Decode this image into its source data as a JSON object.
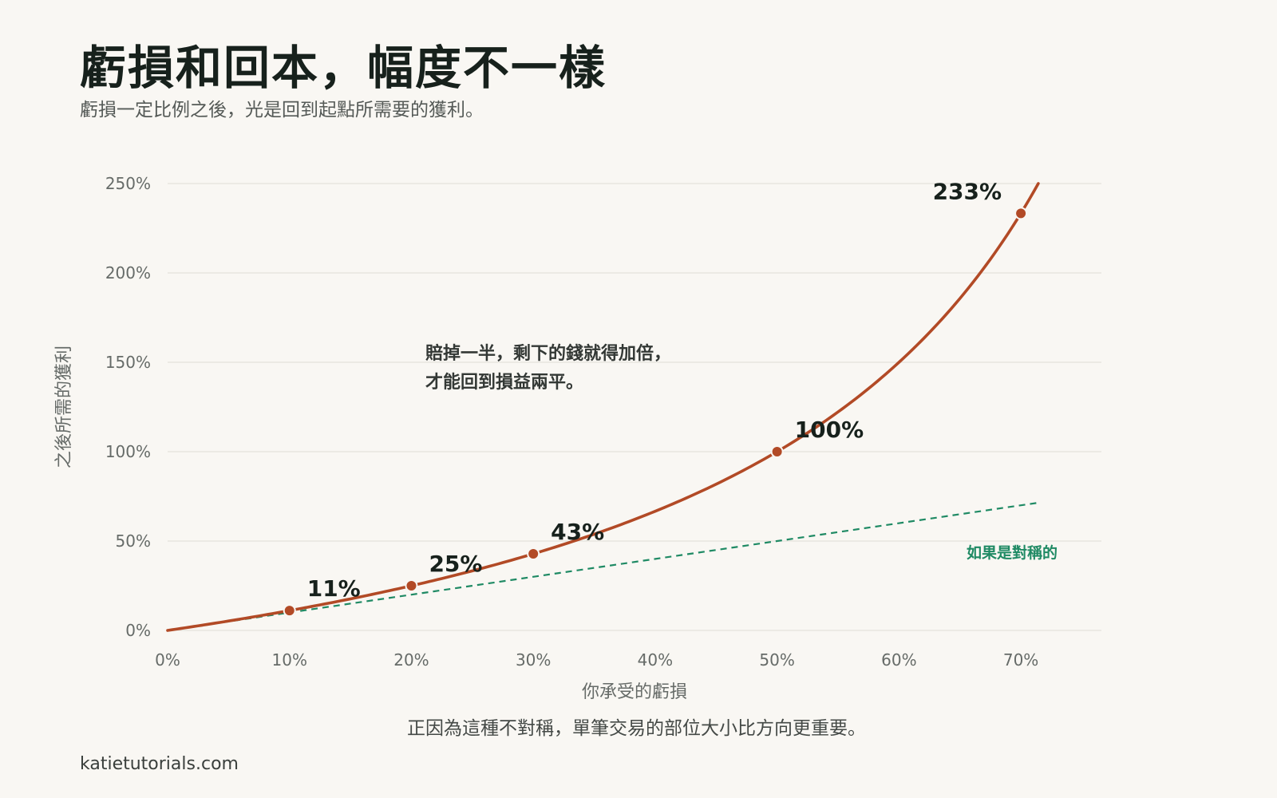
{
  "header": {
    "title": "虧損和回本，幅度不一樣",
    "subtitle": "虧損一定比例之後，光是回到起點所需要的獲利。"
  },
  "footer": {
    "note": "正因為這種不對稱，單筆交易的部位大小比方向更重要。",
    "source": "katietutorials.com"
  },
  "chart_data": {
    "type": "line",
    "title": "虧損和回本，幅度不一樣",
    "subtitle": "虧損一定比例之後，光是回到起點所需要的獲利。",
    "xlabel": "你承受的虧損",
    "ylabel": "之後所需的獲利",
    "xlim": [
      0,
      0.715
    ],
    "ylim": [
      0,
      2.5
    ],
    "x_ticks": [
      {
        "value": 0,
        "label": "0%"
      },
      {
        "value": 0.1,
        "label": "10%"
      },
      {
        "value": 0.2,
        "label": "20%"
      },
      {
        "value": 0.3,
        "label": "30%"
      },
      {
        "value": 0.4,
        "label": "40%"
      },
      {
        "value": 0.5,
        "label": "50%"
      },
      {
        "value": 0.6,
        "label": "60%"
      },
      {
        "value": 0.7,
        "label": "70%"
      }
    ],
    "y_ticks": [
      {
        "value": 0,
        "label": "0%"
      },
      {
        "value": 0.5,
        "label": "50%"
      },
      {
        "value": 1.0,
        "label": "100%"
      },
      {
        "value": 1.5,
        "label": "150%"
      },
      {
        "value": 2.0,
        "label": "200%"
      },
      {
        "value": 2.5,
        "label": "250%"
      }
    ],
    "grid": true,
    "series": [
      {
        "name": "",
        "style": "solid",
        "color": "#b24a26",
        "x": [
          0,
          0.05,
          0.1,
          0.15,
          0.2,
          0.25,
          0.3,
          0.35,
          0.4,
          0.45,
          0.5,
          0.55,
          0.6,
          0.65,
          0.7,
          0.7143
        ],
        "y": [
          0,
          0.0526,
          0.1111,
          0.1765,
          0.25,
          0.3333,
          0.4286,
          0.5385,
          0.6667,
          0.8182,
          1.0,
          1.2222,
          1.5,
          1.8571,
          2.3333,
          2.5
        ]
      },
      {
        "name": "如果是對稱的",
        "style": "dashed",
        "color": "#1f8a64",
        "x": [
          0,
          0.715
        ],
        "y": [
          0,
          0.715
        ]
      }
    ],
    "highlight_points": [
      {
        "x": 0.1,
        "y": 0.1111,
        "label": "11%"
      },
      {
        "x": 0.2,
        "y": 0.25,
        "label": "25%"
      },
      {
        "x": 0.3,
        "y": 0.4286,
        "label": "43%"
      },
      {
        "x": 0.5,
        "y": 1.0,
        "label": "100%"
      },
      {
        "x": 0.7,
        "y": 2.3333,
        "label": "233%"
      }
    ],
    "annotation": {
      "lines": [
        "賠掉一半，剩下的錢就得加倍，",
        "才能回到損益兩平。"
      ]
    }
  }
}
